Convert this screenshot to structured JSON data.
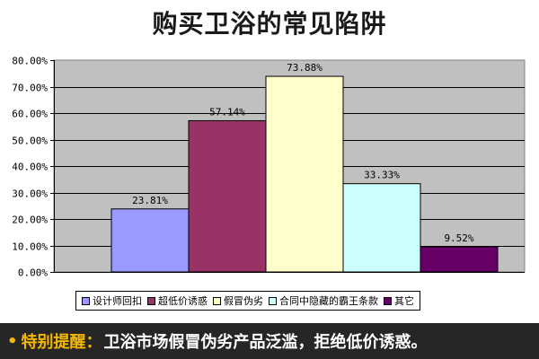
{
  "chart_data": {
    "type": "bar",
    "title": "购买卫浴的常见陷阱",
    "categories": [
      "设计师回扣",
      "超低价诱惑",
      "假冒伪劣",
      "合同中隐藏的霸王条款",
      "其它"
    ],
    "values": [
      23.81,
      57.14,
      73.88,
      33.33,
      9.52
    ],
    "value_labels": [
      "23.81%",
      "57.14%",
      "73.88%",
      "33.33%",
      "9.52%"
    ],
    "colors": [
      "#9999ff",
      "#993366",
      "#ffffcc",
      "#ccffff",
      "#660066"
    ],
    "ylim": [
      0,
      80
    ],
    "y_ticks": [
      "0.00%",
      "10.00%",
      "20.00%",
      "30.00%",
      "40.00%",
      "50.00%",
      "60.00%",
      "70.00%",
      "80.00%"
    ],
    "plot_background": "#c0c0c0",
    "grid": true,
    "legend_position": "bottom"
  },
  "banner": {
    "bullet": "•",
    "label": "特别提醒",
    "colon": "：",
    "text": "卫浴市场假冒伪劣产品泛滥，拒绝低价诱惑。"
  }
}
